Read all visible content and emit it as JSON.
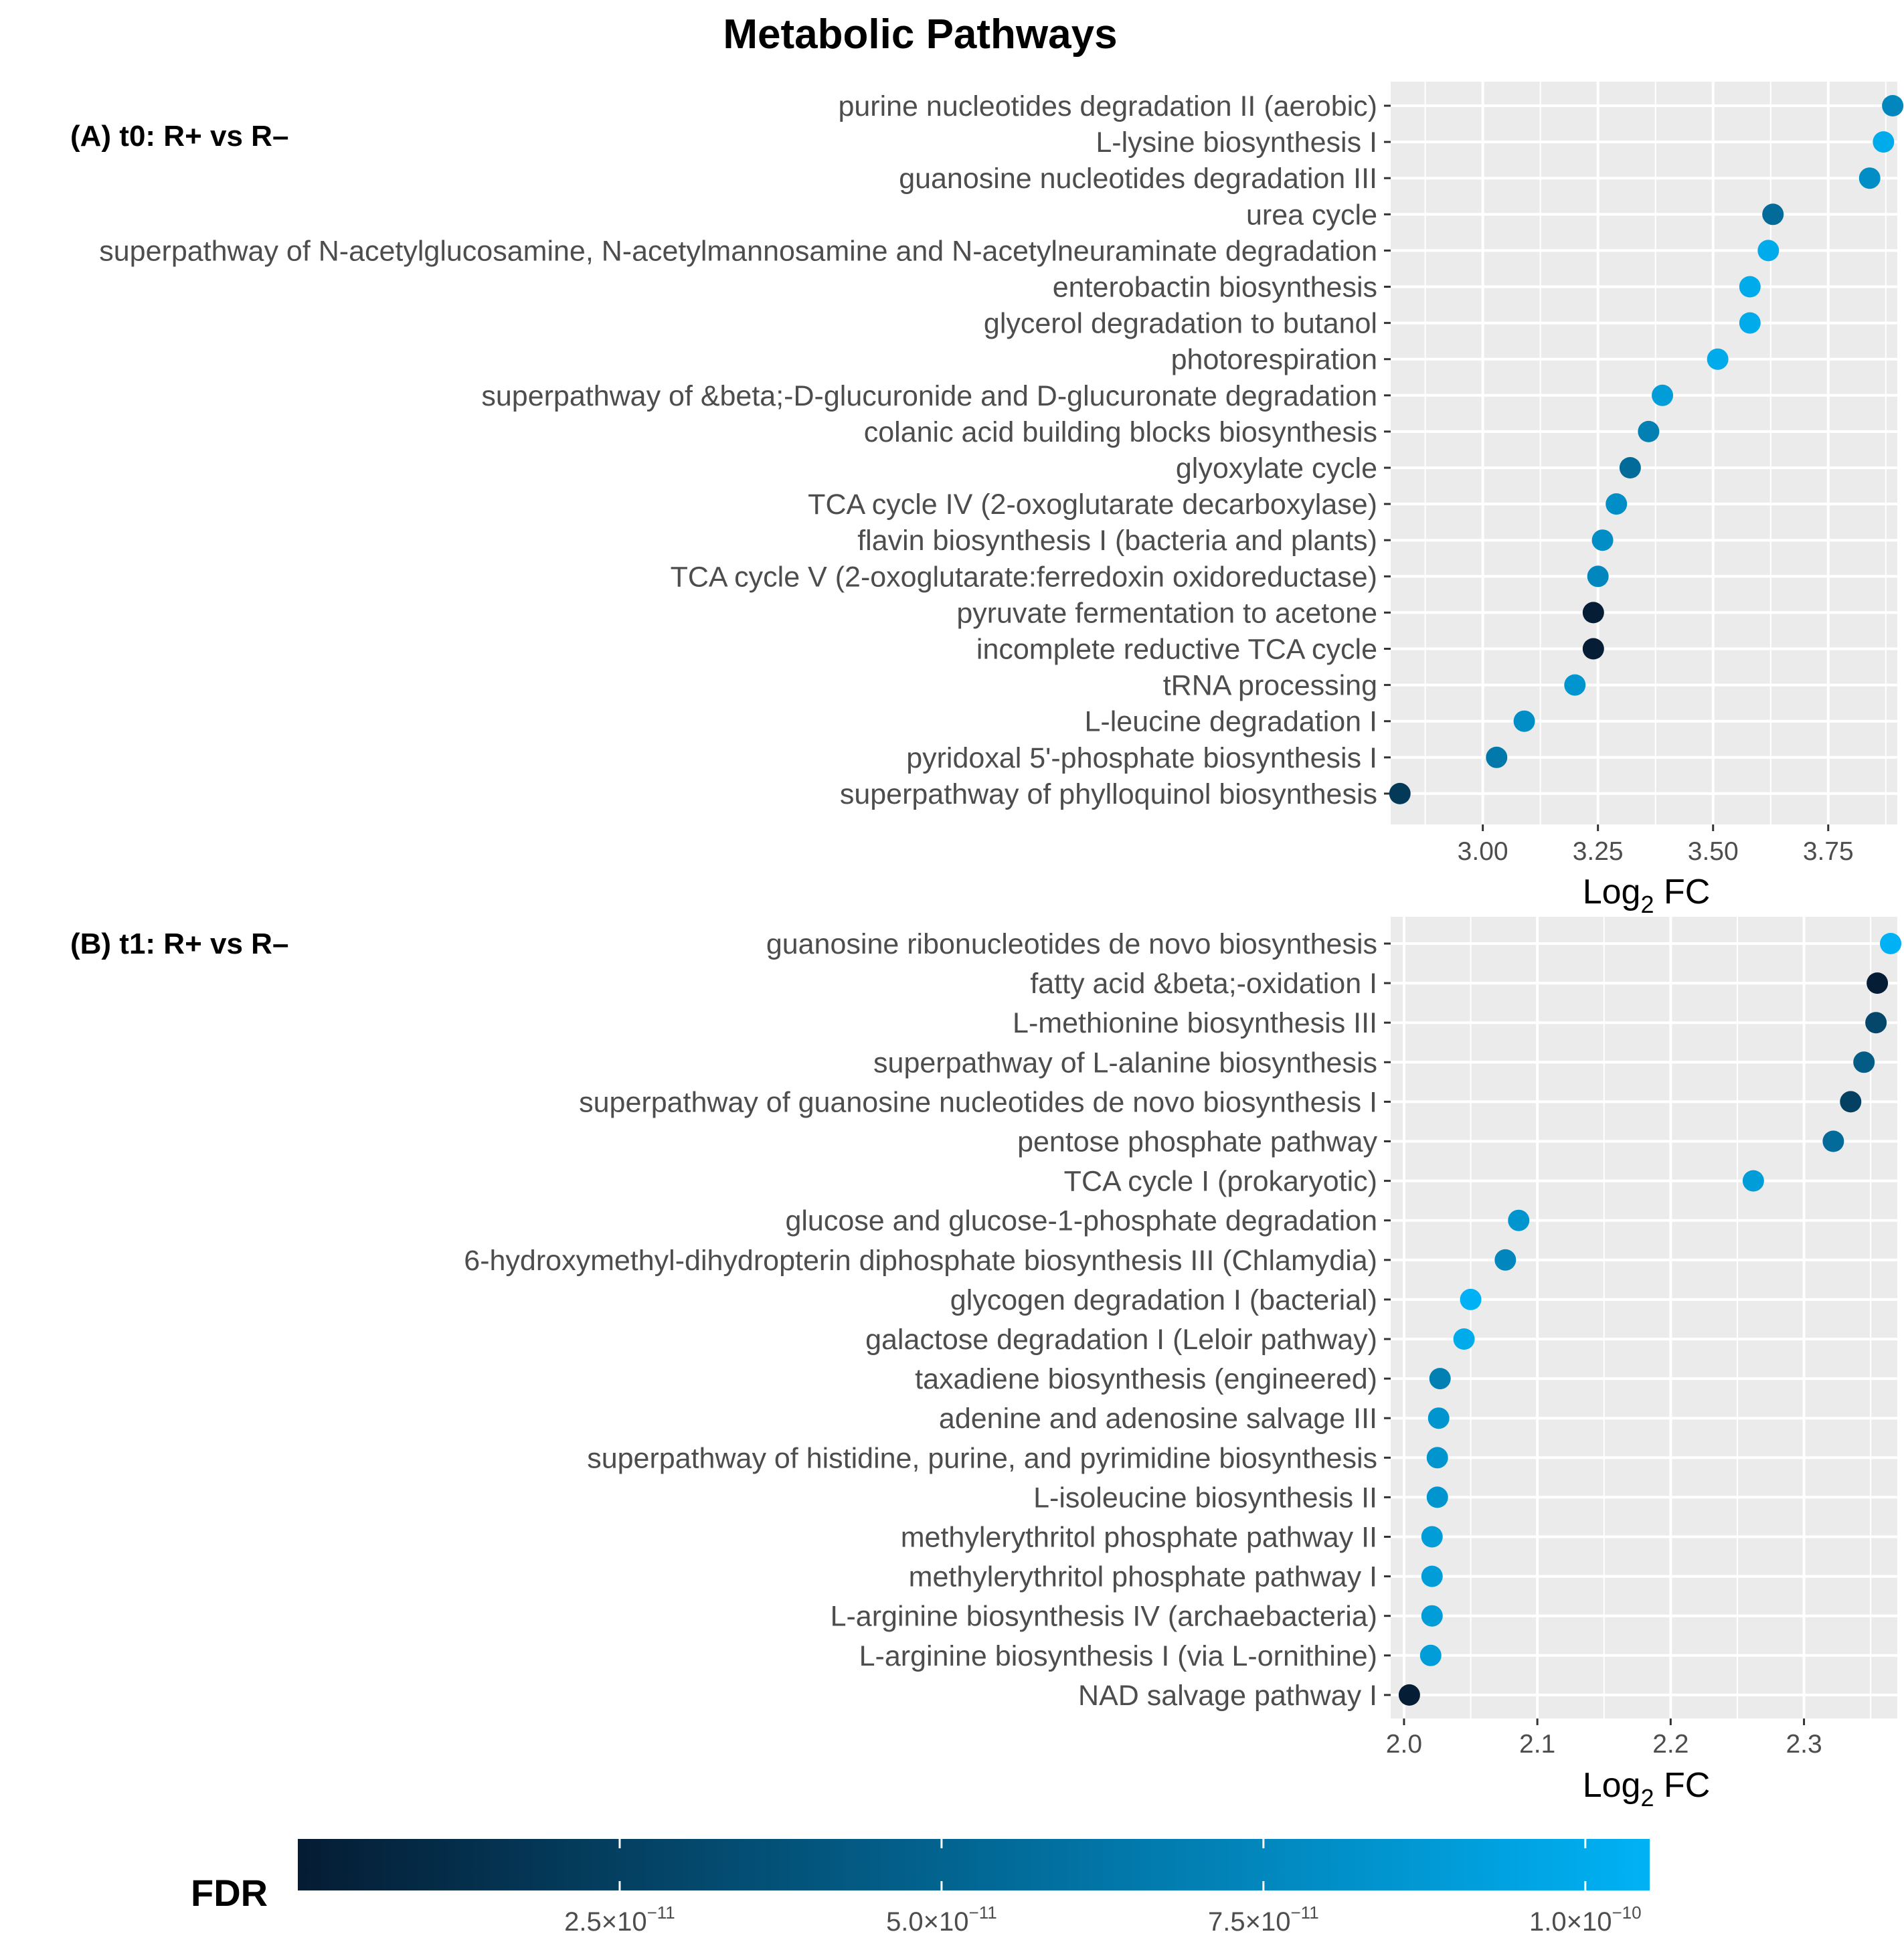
{
  "title": "Metabolic Pathways",
  "chart_data": [
    {
      "type": "scatter",
      "panel_label": "(A) t0: R+ vs R–",
      "xlabel_main": "Log",
      "xlabel_sub": "2",
      "xlabel_tail": " FC",
      "xlim": [
        2.8,
        3.9
      ],
      "xticks": [
        3.0,
        3.25,
        3.5,
        3.75
      ],
      "xtick_labels": [
        "3.00",
        "3.25",
        "3.50",
        "3.75"
      ],
      "categories": [
        "purine nucleotides degradation II (aerobic)",
        "L-lysine biosynthesis I",
        "guanosine nucleotides degradation III",
        "urea cycle",
        "superpathway of N-acetylglucosamine, N-acetylmannosamine and N-acetylneuraminate degradation",
        "enterobactin biosynthesis",
        "glycerol degradation to butanol",
        "photorespiration",
        "superpathway of &beta;-D-glucuronide and D-glucuronate degradation",
        "colanic acid building blocks biosynthesis",
        "glyoxylate cycle",
        "TCA cycle IV (2-oxoglutarate decarboxylase)",
        "flavin biosynthesis I (bacteria and plants)",
        "TCA cycle V (2-oxoglutarate:ferredoxin oxidoreductase)",
        "pyruvate fermentation to acetone",
        "incomplete reductive TCA cycle",
        "tRNA processing",
        "L-leucine degradation I",
        "pyridoxal 5'-phosphate biosynthesis I",
        "superpathway of phylloquinol biosynthesis"
      ],
      "values": [
        3.89,
        3.87,
        3.84,
        3.63,
        3.62,
        3.58,
        3.58,
        3.51,
        3.39,
        3.36,
        3.32,
        3.29,
        3.26,
        3.25,
        3.24,
        3.24,
        3.2,
        3.09,
        3.03,
        2.82
      ],
      "fdr": [
        7.5e-11,
        1e-10,
        8e-11,
        5.5e-11,
        1e-10,
        1e-10,
        1e-10,
        1e-10,
        9e-11,
        7e-11,
        5.5e-11,
        8e-11,
        8e-11,
        7.5e-11,
        1e-12,
        1e-12,
        8.5e-11,
        8e-11,
        6.5e-11,
        2e-11
      ]
    },
    {
      "type": "scatter",
      "panel_label": "(B) t1: R+ vs R–",
      "xlabel_main": "Log",
      "xlabel_sub": "2",
      "xlabel_tail": " FC",
      "xlim": [
        1.99,
        2.37
      ],
      "xticks": [
        2.0,
        2.1,
        2.2,
        2.3
      ],
      "xtick_labels": [
        "2.0",
        "2.1",
        "2.2",
        "2.3"
      ],
      "categories": [
        "guanosine ribonucleotides de novo biosynthesis",
        "fatty acid &beta;-oxidation I",
        "L-methionine biosynthesis III",
        "superpathway of L-alanine biosynthesis",
        "superpathway of guanosine nucleotides de novo biosynthesis I",
        "pentose phosphate pathway",
        "TCA cycle I (prokaryotic)",
        "glucose and glucose-1-phosphate degradation",
        "6-hydroxymethyl-dihydropterin diphosphate biosynthesis III (Chlamydia)",
        "glycogen degradation I (bacterial)",
        "galactose degradation I (Leloir pathway)",
        "taxadiene biosynthesis (engineered)",
        "adenine and adenosine salvage III",
        "superpathway of histidine, purine, and pyrimidine biosynthesis",
        "L-isoleucine biosynthesis II",
        "methylerythritol phosphate pathway II",
        "methylerythritol phosphate pathway I",
        "L-arginine biosynthesis IV (archaebacteria)",
        "L-arginine biosynthesis I (via L-ornithine)",
        "NAD salvage pathway I"
      ],
      "values": [
        2.365,
        2.355,
        2.354,
        2.345,
        2.335,
        2.322,
        2.262,
        2.086,
        2.076,
        2.05,
        2.045,
        2.027,
        2.026,
        2.025,
        2.025,
        2.021,
        2.021,
        2.021,
        2.02,
        2.004
      ],
      "fdr": [
        1.05e-10,
        1e-12,
        3e-11,
        4.5e-11,
        2.5e-11,
        5.5e-11,
        9e-11,
        8.5e-11,
        7.5e-11,
        1.05e-10,
        1e-10,
        7e-11,
        8.5e-11,
        8.5e-11,
        8.5e-11,
        9e-11,
        9e-11,
        9e-11,
        9e-11,
        1e-12
      ]
    }
  ],
  "legend": {
    "title": "FDR",
    "color_low": "#051c33",
    "color_high": "#00b2f5",
    "range": [
      0,
      1.05e-10
    ],
    "ticks": [
      2.5e-11,
      5e-11,
      7.5e-11,
      1e-10
    ],
    "tick_mantissa": [
      "2.5×10",
      "5.0×10",
      "7.5×10",
      "1.0×10"
    ],
    "tick_exponent": [
      "−11",
      "−11",
      "−11",
      "−10"
    ]
  },
  "colors": {
    "panel_bg": "#ebebeb",
    "grid": "#ffffff"
  }
}
